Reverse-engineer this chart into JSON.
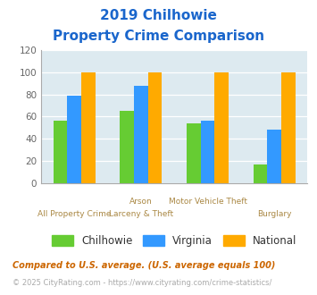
{
  "title_line1": "2019 Chilhowie",
  "title_line2": "Property Crime Comparison",
  "cat_labels_top": [
    "",
    "Arson",
    "Motor Vehicle Theft",
    ""
  ],
  "cat_labels_bot": [
    "All Property Crime",
    "Larceny & Theft",
    "",
    "Burglary"
  ],
  "series": {
    "Chilhowie": [
      56,
      65,
      54,
      17
    ],
    "Virginia": [
      79,
      88,
      56,
      48
    ],
    "National": [
      100,
      100,
      100,
      100
    ]
  },
  "colors": {
    "Chilhowie": "#66cc33",
    "Virginia": "#3399ff",
    "National": "#ffaa00"
  },
  "ylim": [
    0,
    120
  ],
  "yticks": [
    0,
    20,
    40,
    60,
    80,
    100,
    120
  ],
  "title_color": "#1a66cc",
  "label_color": "#aa8844",
  "footnote1": "Compared to U.S. average. (U.S. average equals 100)",
  "footnote2": "© 2025 CityRating.com - https://www.cityrating.com/crime-statistics/",
  "footnote1_color": "#cc6600",
  "footnote2_color": "#aaaaaa",
  "fig_bg": "#ffffff",
  "plot_bg": "#ddeaf0"
}
